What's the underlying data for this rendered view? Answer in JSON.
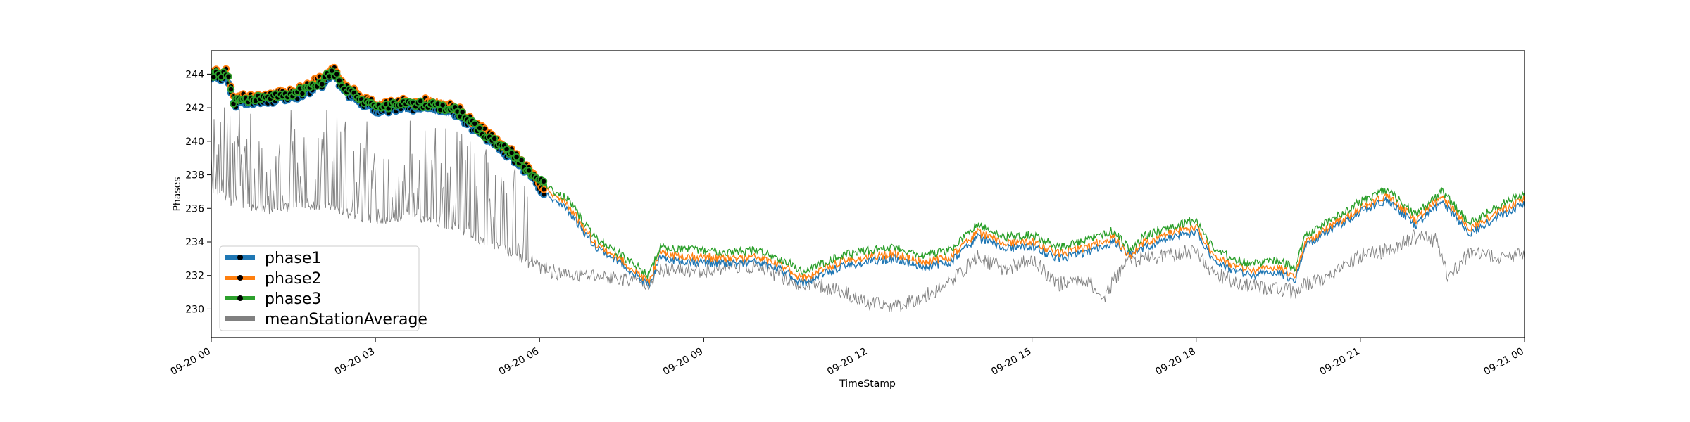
{
  "chart_data": {
    "type": "line",
    "xlabel": "TimeStamp",
    "ylabel": "Phases",
    "x_range_hours": [
      0,
      24
    ],
    "ylim": [
      228.3,
      245.4
    ],
    "y_ticks": [
      230,
      232,
      234,
      236,
      238,
      240,
      242,
      244
    ],
    "x_ticks": [
      {
        "hour": 0,
        "label": "09-20 00"
      },
      {
        "hour": 3,
        "label": "09-20 03"
      },
      {
        "hour": 6,
        "label": "09-20 06"
      },
      {
        "hour": 9,
        "label": "09-20 09"
      },
      {
        "hour": 12,
        "label": "09-20 12"
      },
      {
        "hour": 15,
        "label": "09-20 15"
      },
      {
        "hour": 18,
        "label": "09-20 18"
      },
      {
        "hour": 21,
        "label": "09-20 21"
      },
      {
        "hour": 24,
        "label": "09-21 00"
      }
    ],
    "grid": false,
    "legend_position": "lower-left",
    "series": [
      {
        "name": "meanStationAverage",
        "color": "#808080",
        "style": "line",
        "x": [
          0,
          0.3,
          0.6,
          1,
          1.5,
          2,
          2.5,
          3,
          3.5,
          4,
          4.5,
          5,
          5.5,
          6,
          6.5,
          7,
          7.5,
          8,
          8.2,
          9,
          9.5,
          10,
          10.5,
          10.8,
          11,
          11.5,
          12,
          12.5,
          13,
          13.5,
          14,
          14.5,
          15,
          15.5,
          16,
          16.3,
          16.7,
          17,
          17.5,
          18,
          18.3,
          18.8,
          19.3,
          19.8,
          20,
          20.5,
          21,
          21.5,
          22,
          22.4,
          22.6,
          23,
          23.5,
          24
        ],
        "values": [
          237.5,
          236.8,
          236.3,
          236.2,
          236.4,
          236.5,
          236.0,
          235.6,
          235.8,
          235.6,
          235.2,
          234.3,
          233.7,
          232.5,
          232.0,
          232.0,
          231.8,
          231.6,
          232.3,
          232.3,
          232.6,
          232.5,
          231.8,
          231.4,
          231.5,
          231.1,
          230.3,
          230.2,
          230.7,
          231.6,
          233.1,
          232.4,
          232.9,
          231.5,
          231.8,
          230.6,
          232.8,
          233.0,
          233.2,
          233.5,
          232.2,
          231.5,
          231.3,
          231.0,
          231.5,
          232.0,
          233.2,
          233.5,
          234.3,
          234.1,
          232.0,
          233.3,
          233.1,
          233.2
        ]
      },
      {
        "name": "phase1",
        "color": "#1f77b4",
        "style": "line-marker",
        "marker_until_hour": 6.1,
        "x": [
          0,
          0.3,
          0.4,
          1,
          1.5,
          2,
          2.2,
          2.5,
          3,
          3.5,
          4,
          4.5,
          5,
          5.5,
          5.8,
          6,
          6.5,
          7,
          7.5,
          8,
          8.2,
          8.5,
          9,
          9.5,
          10,
          10.5,
          10.8,
          11,
          11.5,
          12,
          12.5,
          13,
          13.5,
          14,
          14.5,
          15,
          15.5,
          16,
          16.5,
          16.8,
          17,
          17.5,
          18,
          18.3,
          18.6,
          19,
          19.5,
          19.8,
          20,
          20.5,
          21,
          21.5,
          22,
          22.5,
          23,
          23.5,
          24
        ],
        "values": [
          243.8,
          243.8,
          242.2,
          242.4,
          242.6,
          243.3,
          244.0,
          242.8,
          241.8,
          242.0,
          242.0,
          241.6,
          240.2,
          239.0,
          238.1,
          237.0,
          236.0,
          233.8,
          232.7,
          231.4,
          233.0,
          232.9,
          232.8,
          232.7,
          232.8,
          232.2,
          231.5,
          231.8,
          232.5,
          232.8,
          233.0,
          232.5,
          232.8,
          234.3,
          233.6,
          233.7,
          233.0,
          233.4,
          234.0,
          233.3,
          233.6,
          234.2,
          234.6,
          233.0,
          232.4,
          232.0,
          232.2,
          231.7,
          233.8,
          234.8,
          235.8,
          236.5,
          235.0,
          236.4,
          234.5,
          235.5,
          236.3
        ]
      },
      {
        "name": "phase2",
        "color": "#ff7f0e",
        "style": "line-marker",
        "marker_until_hour": 6.1,
        "x": [
          0,
          0.3,
          0.4,
          1,
          1.5,
          2,
          2.2,
          2.5,
          3,
          3.5,
          4,
          4.5,
          5,
          5.5,
          5.8,
          6,
          6.5,
          7,
          7.5,
          8,
          8.2,
          8.5,
          9,
          9.5,
          10,
          10.5,
          10.8,
          11,
          11.5,
          12,
          12.5,
          13,
          13.5,
          14,
          14.5,
          15,
          15.5,
          16,
          16.5,
          16.8,
          17,
          17.5,
          18,
          18.3,
          18.6,
          19,
          19.5,
          19.8,
          20,
          20.5,
          21,
          21.5,
          22,
          22.5,
          23,
          23.5,
          24
        ],
        "values": [
          244.2,
          244.2,
          242.6,
          242.8,
          243.0,
          243.7,
          244.4,
          243.2,
          242.2,
          242.4,
          242.4,
          242.0,
          240.6,
          239.4,
          238.4,
          237.3,
          236.3,
          234.0,
          232.9,
          231.6,
          233.3,
          233.2,
          233.1,
          233.0,
          233.1,
          232.5,
          231.8,
          232.1,
          232.8,
          233.1,
          233.3,
          232.8,
          233.1,
          234.6,
          233.9,
          234.0,
          233.3,
          233.7,
          234.3,
          233.1,
          233.9,
          234.5,
          234.9,
          233.3,
          232.7,
          232.3,
          232.5,
          232.0,
          234.0,
          235.0,
          236.0,
          236.8,
          235.3,
          236.7,
          234.8,
          235.8,
          236.6
        ]
      },
      {
        "name": "phase3",
        "color": "#2ca02c",
        "style": "line-marker",
        "marker_until_hour": 6.1,
        "x": [
          0,
          0.3,
          0.4,
          1,
          1.5,
          2,
          2.2,
          2.5,
          3,
          3.5,
          4,
          4.5,
          5,
          5.5,
          5.8,
          6,
          6.5,
          7,
          7.5,
          8,
          8.2,
          8.5,
          9,
          9.5,
          10,
          10.5,
          10.8,
          11,
          11.5,
          12,
          12.5,
          13,
          13.5,
          14,
          14.5,
          15,
          15.5,
          16,
          16.5,
          16.8,
          17,
          17.5,
          18,
          18.3,
          18.6,
          19,
          19.5,
          19.8,
          20,
          20.5,
          21,
          21.5,
          22,
          22.5,
          23,
          23.5,
          24
        ],
        "values": [
          244.0,
          244.0,
          242.4,
          242.6,
          242.8,
          243.5,
          244.2,
          243.0,
          242.0,
          242.2,
          242.2,
          241.8,
          240.4,
          239.2,
          238.3,
          237.6,
          236.6,
          234.3,
          233.2,
          232.0,
          233.7,
          233.6,
          233.5,
          233.4,
          233.5,
          232.9,
          232.2,
          232.5,
          233.2,
          233.5,
          233.7,
          233.2,
          233.5,
          235.0,
          234.3,
          234.4,
          233.7,
          234.1,
          234.7,
          233.5,
          234.3,
          234.9,
          235.3,
          233.7,
          233.1,
          232.7,
          232.9,
          232.4,
          234.4,
          235.4,
          236.4,
          237.1,
          235.6,
          237.0,
          235.1,
          236.1,
          236.9
        ]
      }
    ]
  }
}
